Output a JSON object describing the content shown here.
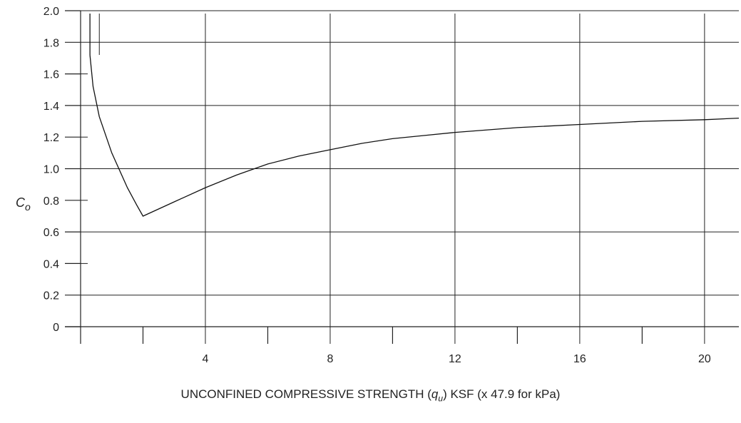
{
  "chart_data": {
    "type": "line",
    "title": "",
    "ylabel_main": "C",
    "ylabel_sub": "o",
    "xlabel_parts": {
      "prefix": "UNCONFINED COMPRESSIVE STRENGTH (",
      "var": "q",
      "sub": "u",
      "suffix": ") KSF (x 47.9 for kPa)"
    },
    "xlim": [
      0,
      21.1
    ],
    "ylim": [
      0,
      2.0
    ],
    "x_ticks": [
      4,
      8,
      12,
      16,
      20
    ],
    "x_minor_ticks": [
      2,
      6,
      10,
      14,
      18
    ],
    "y_ticks": [
      "0",
      "0.2",
      "0.4",
      "0.6",
      "0.8",
      "1.0",
      "1.2",
      "1.4",
      "1.6",
      "1.8",
      "2.0"
    ],
    "y_tick_values": [
      0,
      0.2,
      0.4,
      0.6,
      0.8,
      1.0,
      1.2,
      1.4,
      1.6,
      1.8,
      2.0
    ],
    "grid": true,
    "series": [
      {
        "x": [
          0.3,
          0.4,
          0.6,
          1.0,
          1.5,
          1.8,
          2.0,
          3.0,
          4.0,
          5.0,
          6.0,
          7.0,
          8.0,
          9.0,
          10.0,
          11.0,
          12.0,
          14.0,
          16.0,
          18.0,
          20.0,
          21.1
        ],
        "y": [
          1.72,
          1.52,
          1.33,
          1.1,
          0.88,
          0.77,
          0.7,
          0.79,
          0.88,
          0.96,
          1.03,
          1.08,
          1.12,
          1.16,
          1.19,
          1.21,
          1.23,
          1.26,
          1.28,
          1.3,
          1.31,
          1.32
        ]
      }
    ]
  }
}
